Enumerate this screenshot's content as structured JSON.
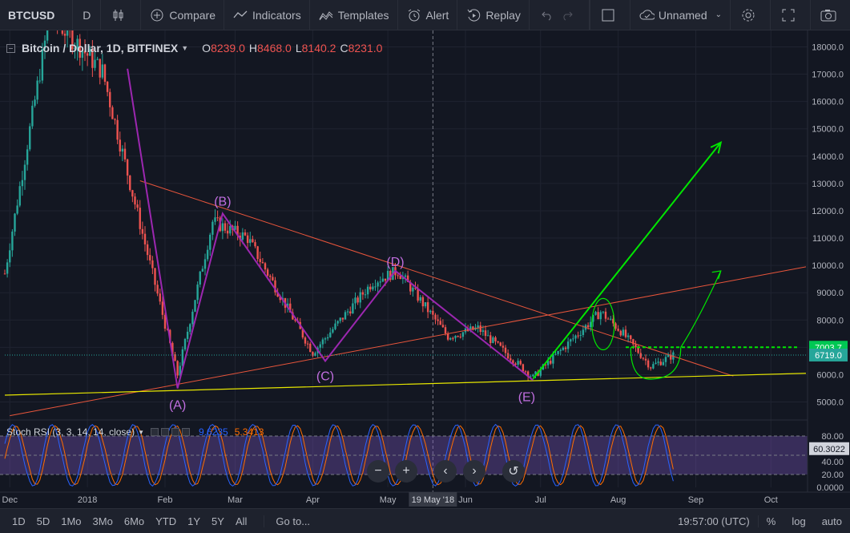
{
  "toolbar": {
    "symbol": "BTCUSD",
    "interval": "D",
    "compare": "Compare",
    "indicators": "Indicators",
    "templates": "Templates",
    "alert": "Alert",
    "replay": "Replay",
    "layout_name": "Unnamed"
  },
  "legend": {
    "title": "Bitcoin / Dollar, 1D, BITFINEX",
    "open_label": "O",
    "open": "8239.0",
    "high_label": "H",
    "high": "8468.0",
    "low_label": "L",
    "low": "8140.2",
    "close_label": "C",
    "close": "8231.0"
  },
  "rsi_legend": {
    "name": "Stoch RSI (3, 3, 14, 14, close)",
    "k": "9.6235",
    "d": "5.3413"
  },
  "bottom": {
    "ranges": [
      "1D",
      "5D",
      "1Mo",
      "3Mo",
      "6Mo",
      "YTD",
      "1Y",
      "5Y",
      "All"
    ],
    "goto": "Go to...",
    "time": "19:57:00 (UTC)",
    "percent": "%",
    "log": "log",
    "auto": "auto"
  },
  "colors": {
    "bg": "#131722",
    "up": "#26a69a",
    "down": "#ef5350",
    "purple": "#9c27b0",
    "green": "#00e600",
    "yellow": "#e6e600",
    "trend": "#e8553b"
  },
  "chart_data": {
    "type": "candlestick",
    "title": "Bitcoin / Dollar, 1D, BITFINEX",
    "y_ticks": [
      5000,
      6000,
      7000,
      8000,
      9000,
      10000,
      11000,
      12000,
      13000,
      14000,
      15000,
      16000,
      17000,
      18000
    ],
    "y_tick_labels": [
      "5000.0",
      "6000.0",
      "7000.0",
      "8000.0",
      "9000.0",
      "10000.0",
      "11000.0",
      "12000.0",
      "13000.0",
      "14000.0",
      "15000.0",
      "16000.0",
      "17000.0",
      "18000.0"
    ],
    "ylim": [
      4400,
      18600
    ],
    "x_labels": [
      "Dec",
      "2018",
      "Feb",
      "Mar",
      "Apr",
      "May",
      "Jun",
      "Jul",
      "Aug",
      "Sep",
      "Oct"
    ],
    "x_label_dates": [
      "2017-12-01",
      "2018-01-01",
      "2018-02-01",
      "2018-03-01",
      "2018-04-01",
      "2018-05-01",
      "2018-06-01",
      "2018-07-01",
      "2018-08-01",
      "2018-09-01",
      "2018-10-01"
    ],
    "x_range": [
      "2017-11-29",
      "2018-10-15"
    ],
    "last_date": "2018-08-23",
    "crosshair_date": "2018-05-19",
    "crosshair_label": "19 May '18",
    "price_badges": [
      {
        "price": 7003.7,
        "label": "7003.7",
        "color": "#00c853"
      },
      {
        "price": 6719.0,
        "label": "6719.0",
        "color": "#26a69a"
      }
    ],
    "anchors": [
      {
        "date": "2017-11-29",
        "price": 9700
      },
      {
        "date": "2017-12-17",
        "price": 19200
      },
      {
        "date": "2018-01-07",
        "price": 17100
      },
      {
        "date": "2018-01-18",
        "price": 13000
      },
      {
        "date": "2018-02-06",
        "price": 6000
      },
      {
        "date": "2018-02-20",
        "price": 11600
      },
      {
        "date": "2018-03-06",
        "price": 11000
      },
      {
        "date": "2018-04-01",
        "price": 6800
      },
      {
        "date": "2018-04-25",
        "price": 9400
      },
      {
        "date": "2018-05-05",
        "price": 9800
      },
      {
        "date": "2018-05-25",
        "price": 7400
      },
      {
        "date": "2018-06-06",
        "price": 7700
      },
      {
        "date": "2018-06-28",
        "price": 5900
      },
      {
        "date": "2018-07-25",
        "price": 8300
      },
      {
        "date": "2018-08-02",
        "price": 7600
      },
      {
        "date": "2018-08-14",
        "price": 6300
      },
      {
        "date": "2018-08-23",
        "price": 6719
      }
    ],
    "pattern": {
      "label_a": "(A)",
      "label_b": "(B)",
      "label_c": "(C)",
      "label_d": "(D)",
      "label_e": "(E)",
      "zigzag": [
        {
          "date": "2018-01-17",
          "price": 17200
        },
        {
          "date": "2018-02-06",
          "price": 5500
        },
        {
          "date": "2018-02-24",
          "price": 11900
        },
        {
          "date": "2018-04-06",
          "price": 6500
        },
        {
          "date": "2018-05-04",
          "price": 9800
        },
        {
          "date": "2018-06-28",
          "price": 5800
        }
      ]
    },
    "lines": {
      "trend_down": [
        {
          "date": "2018-01-22",
          "price": 13100
        },
        {
          "date": "2018-09-16",
          "price": 5950
        }
      ],
      "trend_up": [
        {
          "date": "2017-12-01",
          "price": 4500
        },
        {
          "date": "2018-10-15",
          "price": 9950
        }
      ],
      "support": [
        {
          "date": "2017-11-29",
          "price": 5250
        },
        {
          "date": "2018-10-15",
          "price": 6050
        }
      ],
      "resistance_dashed": [
        {
          "date": "2018-08-04",
          "price": 7003.7
        },
        {
          "date": "2018-10-12",
          "price": 7003.7
        }
      ],
      "target_arrow": [
        {
          "date": "2018-06-28",
          "price": 5850
        },
        {
          "date": "2018-09-11",
          "price": 14500
        }
      ]
    },
    "rsi": {
      "y_ticks": [
        0,
        20,
        40,
        60,
        80
      ],
      "y_tick_labels": [
        "0.0000",
        "20.00",
        "40.00",
        "60.00",
        "80.00"
      ],
      "last_label": "60.3022",
      "last_value": 60.3022,
      "band": [
        20,
        80
      ]
    }
  }
}
